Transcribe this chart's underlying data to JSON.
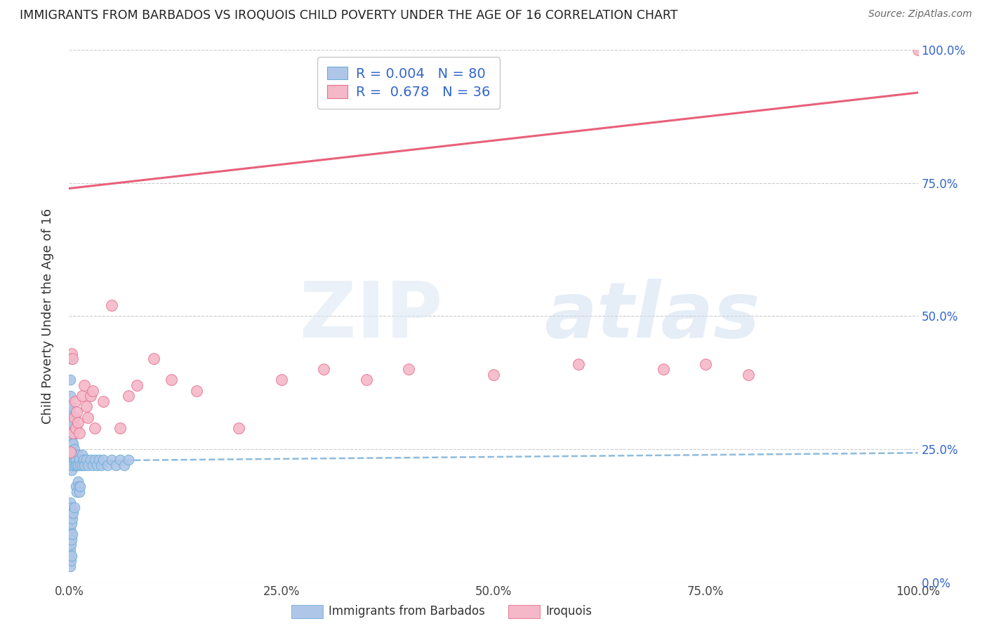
{
  "title": "IMMIGRANTS FROM BARBADOS VS IROQUOIS CHILD POVERTY UNDER THE AGE OF 16 CORRELATION CHART",
  "source": "Source: ZipAtlas.com",
  "ylabel": "Child Poverty Under the Age of 16",
  "xlim": [
    0,
    1.0
  ],
  "ylim": [
    0,
    1.0
  ],
  "xticks": [
    0.0,
    0.25,
    0.5,
    0.75,
    1.0
  ],
  "yticks": [
    0.0,
    0.25,
    0.5,
    0.75,
    1.0
  ],
  "xticklabels": [
    "0.0%",
    "25.0%",
    "50.0%",
    "75.0%",
    "100.0%"
  ],
  "yticklabels": [
    "0.0%",
    "25.0%",
    "50.0%",
    "75.0%",
    "100.0%"
  ],
  "blue_R": 0.004,
  "blue_N": 80,
  "pink_R": 0.678,
  "pink_N": 36,
  "blue_color": "#aec6e8",
  "pink_color": "#f4b8c8",
  "blue_edge_color": "#6baed6",
  "pink_edge_color": "#e87090",
  "blue_line_color": "#7ab0d8",
  "pink_line_color": "#e8607a",
  "legend_text_color": "#3366cc",
  "background_color": "#ffffff",
  "grid_color": "#cccccc",
  "pink_line_x0": 0.0,
  "pink_line_y0": 0.74,
  "pink_line_x1": 1.0,
  "pink_line_y1": 0.92,
  "blue_line_x0": 0.0,
  "blue_line_y0": 0.228,
  "blue_line_x1": 1.0,
  "blue_line_y1": 0.243,
  "blue_scatter_x": [
    0.0005,
    0.001,
    0.001,
    0.001,
    0.001,
    0.0015,
    0.0015,
    0.0015,
    0.002,
    0.002,
    0.002,
    0.002,
    0.002,
    0.0025,
    0.0025,
    0.003,
    0.003,
    0.003,
    0.003,
    0.004,
    0.004,
    0.004,
    0.005,
    0.005,
    0.005,
    0.006,
    0.006,
    0.007,
    0.007,
    0.008,
    0.009,
    0.01,
    0.01,
    0.012,
    0.013,
    0.015,
    0.015,
    0.017,
    0.018,
    0.02,
    0.022,
    0.025,
    0.028,
    0.03,
    0.033,
    0.035,
    0.038,
    0.04,
    0.045,
    0.05,
    0.055,
    0.06,
    0.065,
    0.07,
    0.008,
    0.009,
    0.01,
    0.011,
    0.012,
    0.013,
    0.001,
    0.001,
    0.001,
    0.002,
    0.002,
    0.003,
    0.003,
    0.004,
    0.005,
    0.006,
    0.001,
    0.001,
    0.002,
    0.002,
    0.003,
    0.004,
    0.001,
    0.001,
    0.002,
    0.003
  ],
  "blue_scatter_y": [
    0.22,
    0.42,
    0.38,
    0.35,
    0.3,
    0.28,
    0.32,
    0.26,
    0.31,
    0.29,
    0.27,
    0.25,
    0.23,
    0.33,
    0.3,
    0.27,
    0.25,
    0.23,
    0.21,
    0.26,
    0.24,
    0.22,
    0.28,
    0.26,
    0.24,
    0.25,
    0.23,
    0.24,
    0.22,
    0.23,
    0.22,
    0.24,
    0.22,
    0.23,
    0.22,
    0.24,
    0.22,
    0.23,
    0.22,
    0.23,
    0.22,
    0.23,
    0.22,
    0.23,
    0.22,
    0.23,
    0.22,
    0.23,
    0.22,
    0.23,
    0.22,
    0.23,
    0.22,
    0.23,
    0.18,
    0.17,
    0.19,
    0.18,
    0.17,
    0.18,
    0.15,
    0.13,
    0.1,
    0.14,
    0.12,
    0.13,
    0.11,
    0.12,
    0.13,
    0.14,
    0.08,
    0.06,
    0.07,
    0.09,
    0.08,
    0.09,
    0.05,
    0.03,
    0.04,
    0.05
  ],
  "pink_scatter_x": [
    0.001,
    0.003,
    0.004,
    0.005,
    0.006,
    0.007,
    0.008,
    0.009,
    0.01,
    0.012,
    0.015,
    0.018,
    0.02,
    0.022,
    0.025,
    0.028,
    0.03,
    0.04,
    0.05,
    0.06,
    0.07,
    0.08,
    0.1,
    0.12,
    0.15,
    0.2,
    0.25,
    0.3,
    0.35,
    0.4,
    0.5,
    0.6,
    0.7,
    0.75,
    0.8,
    1.0
  ],
  "pink_scatter_y": [
    0.245,
    0.43,
    0.42,
    0.28,
    0.31,
    0.34,
    0.29,
    0.32,
    0.3,
    0.28,
    0.35,
    0.37,
    0.33,
    0.31,
    0.35,
    0.36,
    0.29,
    0.34,
    0.52,
    0.29,
    0.35,
    0.37,
    0.42,
    0.38,
    0.36,
    0.29,
    0.38,
    0.4,
    0.38,
    0.4,
    0.39,
    0.41,
    0.4,
    0.41,
    0.39,
    1.0
  ]
}
